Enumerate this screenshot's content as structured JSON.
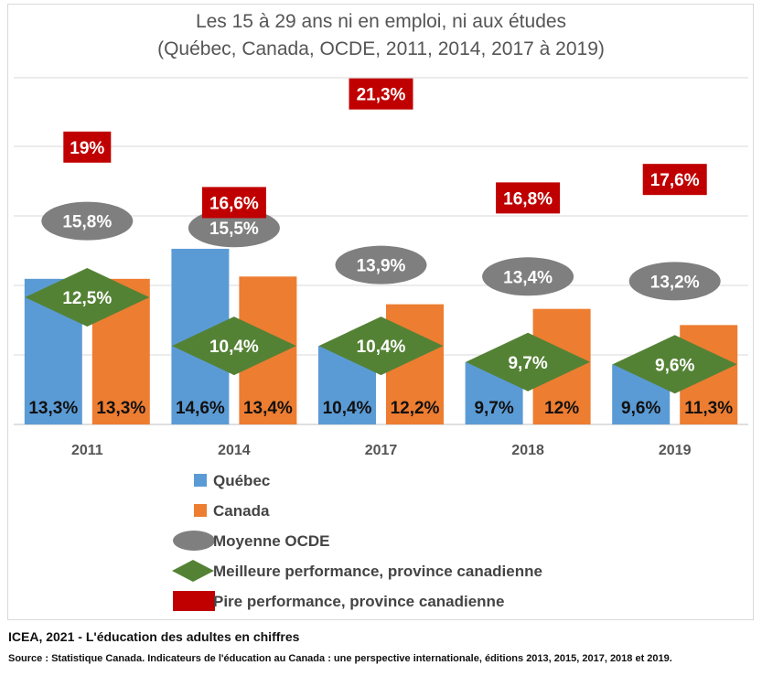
{
  "chart_data": {
    "type": "bar",
    "title": "Les 15 à 29 ans ni en emploi, ni aux études",
    "subtitle": "(Québec, Canada, OCDE, 2011, 2014, 2017 à 2019)",
    "categories": [
      "2011",
      "2014",
      "2017",
      "2018",
      "2019"
    ],
    "series": [
      {
        "name": "Québec",
        "type": "bar",
        "color": "#5b9bd5",
        "values": [
          13.3,
          14.6,
          10.4,
          9.7,
          9.6
        ],
        "labels": [
          "13,3%",
          "14,6%",
          "10,4%",
          "9,7%",
          "9,6%"
        ]
      },
      {
        "name": "Canada",
        "type": "bar",
        "color": "#ed7d31",
        "values": [
          13.3,
          13.4,
          12.2,
          12,
          11.3
        ],
        "labels": [
          "13,3%",
          "13,4%",
          "12,2%",
          "12%",
          "11,3%"
        ]
      },
      {
        "name": "Moyenne OCDE",
        "type": "marker-ellipse",
        "color": "#7f7f7f",
        "values": [
          15.8,
          15.5,
          13.9,
          13.4,
          13.2
        ],
        "labels": [
          "15,8%",
          "15,5%",
          "13,9%",
          "13,4%",
          "13,2%"
        ]
      },
      {
        "name": "Meilleure performance, province canadienne",
        "type": "marker-diamond",
        "color": "#548235",
        "values": [
          12.5,
          10.4,
          10.4,
          9.7,
          9.6
        ],
        "labels": [
          "12,5%",
          "10,4%",
          "10,4%",
          "9,7%",
          "9,6%"
        ]
      },
      {
        "name": "Pire performance, province canadienne",
        "type": "marker-rect",
        "color": "#c00000",
        "values": [
          19,
          16.6,
          21.3,
          16.8,
          17.6
        ],
        "labels": [
          "19%",
          "16,6%",
          "21,3%",
          "16,8%",
          "17,6%"
        ]
      }
    ],
    "ylim": [
      7,
      22
    ],
    "grid": true,
    "legend": "bottom-left"
  },
  "footer": {
    "credit": "ICEA, 2021 - L'éducation des adultes en chiffres",
    "source": "Source : Statistique Canada.  Indicateurs de l'éducation  au Canada : une perspective internationale,  éditions 2013, 2015, 2017, 2018 et 2019."
  }
}
